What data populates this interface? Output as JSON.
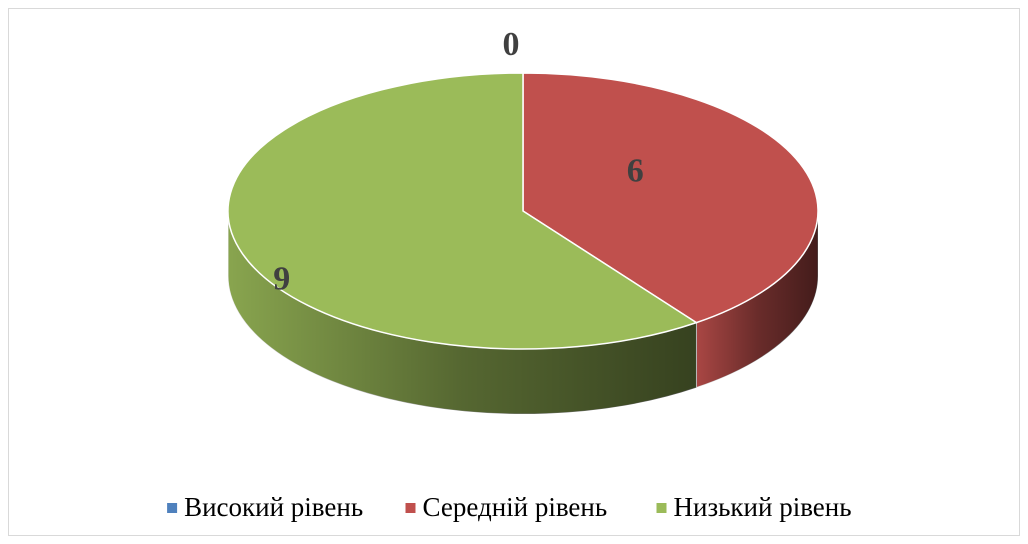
{
  "chart_data": {
    "type": "pie3d",
    "categories": [
      "Високий рівень",
      "Середній рівень",
      "Низький рівень"
    ],
    "values": [
      0,
      6,
      9
    ],
    "colors": [
      "#4f81bd",
      "#c0504d",
      "#9bbb59"
    ],
    "legend": "bottom"
  }
}
